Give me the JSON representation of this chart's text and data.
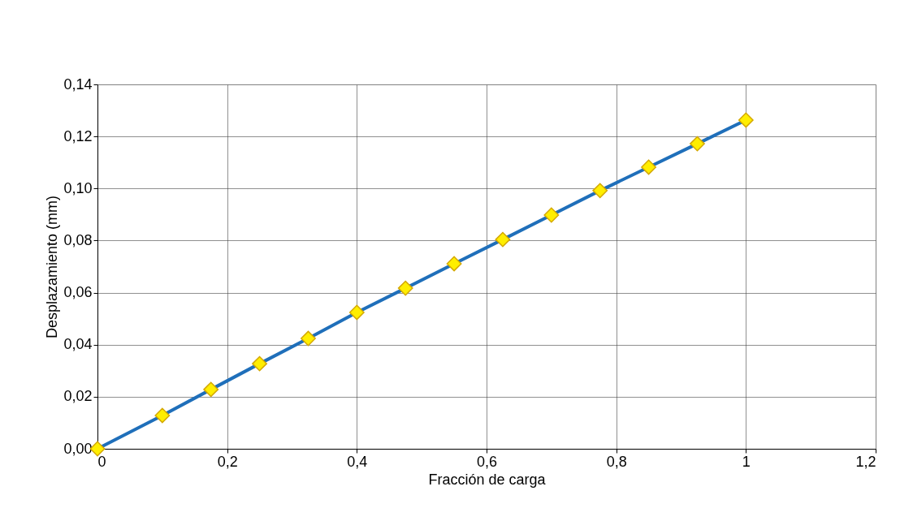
{
  "chart_data": {
    "type": "line",
    "xlabel": "Fracción de carga",
    "ylabel": "Desplazamiento (mm)",
    "x": [
      0,
      0.1,
      0.175,
      0.25,
      0.325,
      0.4,
      0.475,
      0.55,
      0.625,
      0.7,
      0.775,
      0.85,
      0.925,
      1.0
    ],
    "series": [
      {
        "color": "#1f6fba",
        "values": [
          0,
          0.0128,
          0.0228,
          0.0327,
          0.0424,
          0.0524,
          0.0617,
          0.0711,
          0.0804,
          0.0898,
          0.0992,
          0.1082,
          0.1172,
          0.1263
        ]
      }
    ],
    "xlim": [
      0,
      1.2
    ],
    "xticks": [
      0,
      {
        "value": 0.2,
        "label": "0,2"
      },
      {
        "value": 0.4,
        "label": "0,4"
      },
      {
        "value": 0.6,
        "label": "0,6"
      },
      {
        "value": 0.8,
        "label": "0,8"
      },
      1,
      {
        "value": 1.2,
        "label": "1,2"
      }
    ],
    "ylim": [
      0,
      0.14
    ],
    "yticks": [
      {
        "value": 0,
        "label": "0,00"
      },
      {
        "value": 0.02,
        "label": "0,02"
      },
      {
        "value": 0.04,
        "label": "0,04"
      },
      {
        "value": 0.06,
        "label": "0,06"
      },
      {
        "value": 0.08,
        "label": "0,08"
      },
      {
        "value": 0.1,
        "label": "0,10"
      },
      {
        "value": 0.12,
        "label": "0,12"
      },
      {
        "value": 0.14,
        "label": "0,14"
      }
    ],
    "grid": true,
    "marker": "diamond",
    "line_style": "solid"
  }
}
